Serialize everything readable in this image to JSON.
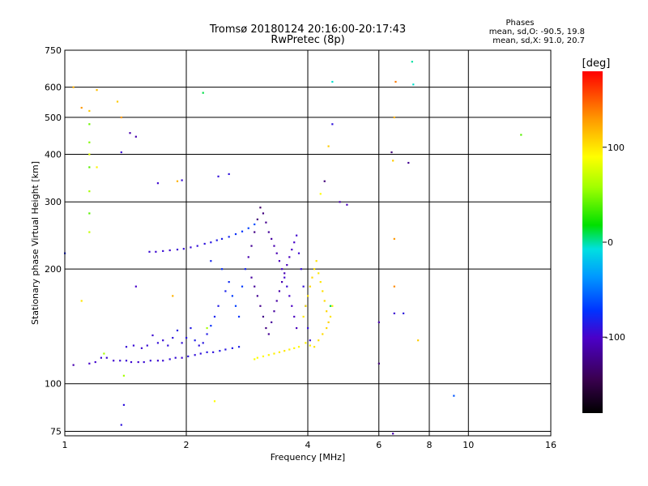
{
  "header": {
    "title": "Tromsø 20180124 20:16:00-20:17:43",
    "subtitle": "RwPretec (8p)"
  },
  "phase_summary": {
    "title": "Phases",
    "line_o": "mean, sd,O: -90.5, 19.8",
    "line_x": "mean, sd,X:  91.0, 20.7"
  },
  "colorbar": {
    "unit_label": "[deg]",
    "ticks": [
      {
        "value": 100,
        "label": "100"
      },
      {
        "value": 0,
        "label": "0"
      },
      {
        "value": -100,
        "label": "-100"
      }
    ],
    "range": [
      -180,
      180
    ]
  },
  "chart_data": {
    "type": "scatter",
    "xlabel": "Frequency [MHz]",
    "ylabel": "Stationary phase Virtual Height [km]",
    "x_scale": "log",
    "y_scale": "log",
    "xlim": [
      1,
      16
    ],
    "ylim": [
      73,
      750
    ],
    "xticks": [
      {
        "value": 1,
        "label": "1"
      },
      {
        "value": 2,
        "label": "2"
      },
      {
        "value": 4,
        "label": "4"
      },
      {
        "value": 6,
        "label": "6"
      },
      {
        "value": 8,
        "label": "8"
      },
      {
        "value": 10,
        "label": "10"
      },
      {
        "value": 16,
        "label": "16"
      }
    ],
    "yticks": [
      {
        "value": 75,
        "label": "75"
      },
      {
        "value": 100,
        "label": "100"
      },
      {
        "value": 200,
        "label": "200"
      },
      {
        "value": 300,
        "label": "300"
      },
      {
        "value": 400,
        "label": "400"
      },
      {
        "value": 500,
        "label": "500"
      },
      {
        "value": 600,
        "label": "600"
      },
      {
        "value": 750,
        "label": "750"
      }
    ],
    "grid": true,
    "color_by": "phase_deg",
    "points": [
      [
        1.23,
        117,
        -95
      ],
      [
        1.27,
        117,
        -96
      ],
      [
        1.32,
        115,
        -97
      ],
      [
        1.37,
        115,
        -95
      ],
      [
        1.42,
        115,
        -94
      ],
      [
        1.46,
        114,
        -96
      ],
      [
        1.52,
        114,
        -98
      ],
      [
        1.57,
        114,
        -95
      ],
      [
        1.63,
        115,
        -93
      ],
      [
        1.7,
        115,
        -96
      ],
      [
        1.75,
        115,
        -95
      ],
      [
        1.82,
        116,
        -92
      ],
      [
        1.88,
        117,
        -94
      ],
      [
        1.95,
        117,
        -96
      ],
      [
        2.02,
        118,
        -90
      ],
      [
        2.1,
        119,
        -92
      ],
      [
        2.17,
        120,
        -91
      ],
      [
        2.25,
        121,
        -88
      ],
      [
        2.33,
        121,
        -90
      ],
      [
        2.42,
        122,
        -86
      ],
      [
        2.5,
        123,
        -88
      ],
      [
        2.6,
        124,
        -85
      ],
      [
        2.7,
        125,
        -83
      ],
      [
        1.15,
        113,
        -100
      ],
      [
        1.19,
        114,
        -98
      ],
      [
        1.62,
        222,
        -95
      ],
      [
        1.68,
        222,
        -96
      ],
      [
        1.75,
        223,
        -94
      ],
      [
        1.82,
        224,
        -97
      ],
      [
        1.9,
        225,
        -95
      ],
      [
        1.97,
        226,
        -93
      ],
      [
        2.05,
        228,
        -94
      ],
      [
        2.13,
        230,
        -92
      ],
      [
        2.22,
        233,
        -90
      ],
      [
        2.3,
        235,
        -88
      ],
      [
        2.38,
        238,
        -85
      ],
      [
        2.45,
        240,
        -83
      ],
      [
        2.55,
        243,
        -80
      ],
      [
        2.65,
        247,
        -76
      ],
      [
        2.75,
        251,
        -72
      ],
      [
        2.85,
        256,
        -68
      ],
      [
        2.95,
        262,
        -64
      ],
      [
        1.7,
        336,
        -96
      ],
      [
        1.95,
        342,
        -94
      ],
      [
        2.4,
        350,
        -92
      ],
      [
        2.55,
        355,
        -90
      ],
      [
        2.3,
        210,
        -80
      ],
      [
        2.45,
        200,
        -75
      ],
      [
        2.55,
        185,
        -78
      ],
      [
        2.6,
        170,
        -70
      ],
      [
        2.65,
        160,
        -68
      ],
      [
        2.7,
        150,
        -72
      ],
      [
        2.5,
        175,
        -82
      ],
      [
        2.4,
        160,
        -85
      ],
      [
        2.35,
        150,
        -80
      ],
      [
        2.3,
        142,
        -74
      ],
      [
        2.25,
        135,
        -85
      ],
      [
        2.2,
        128,
        -88
      ],
      [
        2.15,
        126,
        -90
      ],
      [
        2.1,
        130,
        -84
      ],
      [
        2.05,
        140,
        -86
      ],
      [
        2.0,
        132,
        -88
      ],
      [
        1.95,
        128,
        -92
      ],
      [
        1.9,
        138,
        -86
      ],
      [
        1.85,
        132,
        -90
      ],
      [
        1.8,
        126,
        -92
      ],
      [
        1.75,
        130,
        -94
      ],
      [
        1.7,
        128,
        -92
      ],
      [
        1.65,
        134,
        -96
      ],
      [
        1.6,
        126,
        -95
      ],
      [
        1.55,
        124,
        -96
      ],
      [
        1.48,
        126,
        -94
      ],
      [
        1.42,
        125,
        -93
      ],
      [
        2.75,
        180,
        -70
      ],
      [
        2.8,
        200,
        -80
      ],
      [
        2.85,
        215,
        -110
      ],
      [
        2.9,
        230,
        -120
      ],
      [
        2.95,
        250,
        -125
      ],
      [
        3.0,
        270,
        -130
      ],
      [
        3.05,
        290,
        -135
      ],
      [
        3.1,
        280,
        -128
      ],
      [
        3.15,
        265,
        -122
      ],
      [
        3.2,
        250,
        -118
      ],
      [
        3.25,
        240,
        -115
      ],
      [
        3.3,
        230,
        -110
      ],
      [
        3.35,
        220,
        -108
      ],
      [
        3.4,
        210,
        -105
      ],
      [
        3.45,
        200,
        -100
      ],
      [
        3.5,
        190,
        -98
      ],
      [
        3.55,
        180,
        -95
      ],
      [
        3.6,
        170,
        -100
      ],
      [
        3.65,
        160,
        -102
      ],
      [
        3.7,
        150,
        -104
      ],
      [
        3.75,
        140,
        -106
      ],
      [
        2.9,
        190,
        -115
      ],
      [
        2.95,
        180,
        -118
      ],
      [
        3.0,
        170,
        -120
      ],
      [
        3.05,
        160,
        -122
      ],
      [
        3.1,
        150,
        -124
      ],
      [
        3.15,
        140,
        -126
      ],
      [
        3.2,
        135,
        -120
      ],
      [
        3.25,
        145,
        -118
      ],
      [
        3.3,
        155,
        -116
      ],
      [
        3.35,
        165,
        -114
      ],
      [
        3.4,
        175,
        -112
      ],
      [
        3.45,
        185,
        -110
      ],
      [
        3.5,
        195,
        -108
      ],
      [
        3.55,
        205,
        -106
      ],
      [
        3.6,
        215,
        -104
      ],
      [
        3.65,
        225,
        -102
      ],
      [
        3.7,
        235,
        -100
      ],
      [
        3.75,
        245,
        -98
      ],
      [
        3.8,
        220,
        -96
      ],
      [
        3.85,
        200,
        -94
      ],
      [
        3.9,
        180,
        -92
      ],
      [
        3.95,
        160,
        -90
      ],
      [
        4.0,
        140,
        -92
      ],
      [
        4.05,
        130,
        -95
      ],
      [
        3.9,
        150,
        98
      ],
      [
        3.95,
        160,
        100
      ],
      [
        4.0,
        170,
        102
      ],
      [
        4.05,
        180,
        104
      ],
      [
        4.1,
        190,
        105
      ],
      [
        4.15,
        200,
        103
      ],
      [
        4.2,
        210,
        101
      ],
      [
        4.25,
        195,
        99
      ],
      [
        4.3,
        185,
        100
      ],
      [
        4.35,
        175,
        102
      ],
      [
        4.4,
        165,
        104
      ],
      [
        4.45,
        155,
        106
      ],
      [
        4.5,
        145,
        108
      ],
      [
        3.95,
        128,
        96
      ],
      [
        4.05,
        126,
        98
      ],
      [
        4.15,
        125,
        100
      ],
      [
        4.25,
        130,
        102
      ],
      [
        4.35,
        135,
        104
      ],
      [
        4.45,
        140,
        106
      ],
      [
        4.55,
        150,
        100
      ],
      [
        4.6,
        160,
        98
      ],
      [
        3.1,
        118,
        92
      ],
      [
        3.2,
        119,
        94
      ],
      [
        3.3,
        120,
        96
      ],
      [
        3.4,
        121,
        98
      ],
      [
        3.5,
        122,
        100
      ],
      [
        3.6,
        123,
        96
      ],
      [
        3.7,
        124,
        94
      ],
      [
        3.8,
        125,
        92
      ],
      [
        3.0,
        117,
        90
      ],
      [
        2.95,
        116,
        88
      ],
      [
        4.6,
        620,
        -5
      ],
      [
        4.8,
        300,
        -110
      ],
      [
        5.0,
        295,
        -105
      ],
      [
        4.6,
        480,
        -90
      ],
      [
        4.5,
        420,
        110
      ],
      [
        4.3,
        315,
        90
      ],
      [
        6.6,
        620,
        140
      ],
      [
        6.55,
        500,
        120
      ],
      [
        6.45,
        405,
        -130
      ],
      [
        6.5,
        385,
        110
      ],
      [
        6.55,
        240,
        130
      ],
      [
        6.55,
        180,
        135
      ],
      [
        6.55,
        153,
        -95
      ],
      [
        6.9,
        153,
        -90
      ],
      [
        7.1,
        380,
        -120
      ],
      [
        7.25,
        700,
        0
      ],
      [
        7.3,
        610,
        -5
      ],
      [
        7.5,
        130,
        110
      ],
      [
        9.2,
        93,
        -60
      ],
      [
        13.5,
        450,
        40
      ],
      [
        6.0,
        145,
        -110
      ],
      [
        6.0,
        113,
        -130
      ],
      [
        6.5,
        74,
        -110
      ],
      [
        1.05,
        600,
        120
      ],
      [
        1.1,
        530,
        130
      ],
      [
        1.15,
        520,
        110
      ],
      [
        1.15,
        480,
        45
      ],
      [
        1.15,
        430,
        50
      ],
      [
        1.15,
        400,
        80
      ],
      [
        1.2,
        590,
        115
      ],
      [
        1.2,
        370,
        95
      ],
      [
        1.15,
        370,
        40
      ],
      [
        1.15,
        320,
        60
      ],
      [
        1.15,
        280,
        40
      ],
      [
        1.15,
        250,
        70
      ],
      [
        1.25,
        120,
        60
      ],
      [
        1.35,
        550,
        110
      ],
      [
        1.38,
        500,
        130
      ],
      [
        1.38,
        405,
        -95
      ],
      [
        1.45,
        455,
        -110
      ],
      [
        1.5,
        445,
        -110
      ],
      [
        1.1,
        165,
        100
      ],
      [
        1.05,
        112,
        -110
      ],
      [
        1.4,
        105,
        60
      ],
      [
        1.5,
        180,
        -100
      ],
      [
        1.85,
        170,
        120
      ],
      [
        1.9,
        340,
        120
      ],
      [
        2.2,
        580,
        10
      ],
      [
        2.25,
        140,
        60
      ],
      [
        2.35,
        90,
        90
      ],
      [
        1.38,
        78,
        -90
      ],
      [
        1.4,
        88,
        -90
      ],
      [
        1.0,
        220,
        -80
      ],
      [
        4.55,
        160,
        10
      ],
      [
        4.4,
        340,
        -130
      ]
    ]
  }
}
